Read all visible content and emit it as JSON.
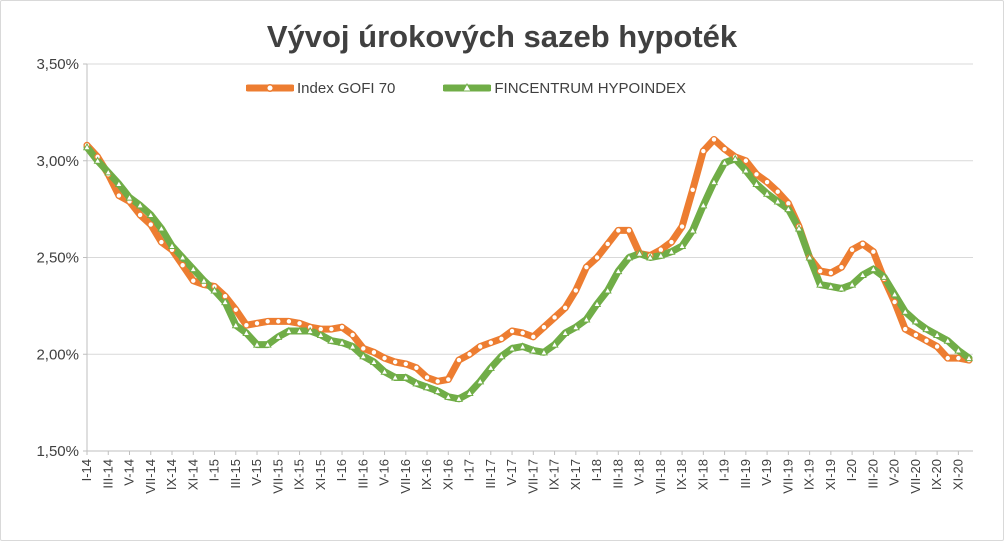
{
  "chart_data": {
    "type": "line",
    "title": "Vývoj úrokových sazeb hypoték",
    "xlabel": "",
    "ylabel": "",
    "ylim": [
      1.5,
      3.5
    ],
    "y_ticks": [
      "1,50%",
      "2,00%",
      "2,50%",
      "3,00%",
      "3,50%"
    ],
    "y_tick_values": [
      1.5,
      2.0,
      2.5,
      3.0,
      3.5
    ],
    "grid": "horizontal",
    "legend_position": "top",
    "x_tick_labels": [
      "I-14",
      "III-14",
      "V-14",
      "VII-14",
      "IX-14",
      "XI-14",
      "I-15",
      "III-15",
      "V-15",
      "VII-15",
      "IX-15",
      "XI-15",
      "I-16",
      "III-16",
      "V-16",
      "VII-16",
      "IX-16",
      "XI-16",
      "I-17",
      "III-17",
      "V-17",
      "VII-17",
      "IX-17",
      "XI-17",
      "I-18",
      "III-18",
      "V-18",
      "VII-18",
      "IX-18",
      "XI-18",
      "I-19",
      "III-19",
      "V-19",
      "VII-19",
      "IX-19",
      "XI-19",
      "I-20",
      "III-20",
      "V-20",
      "VII-20",
      "IX-20",
      "XI-20"
    ],
    "series": [
      {
        "name": "Index GOFI 70",
        "color": "#ed7d31",
        "marker": "circle",
        "values": [
          3.08,
          3.02,
          2.93,
          2.82,
          2.79,
          2.72,
          2.67,
          2.58,
          2.54,
          2.46,
          2.38,
          2.36,
          2.35,
          2.3,
          2.23,
          2.15,
          2.16,
          2.17,
          2.17,
          2.17,
          2.16,
          2.14,
          2.13,
          2.13,
          2.14,
          2.1,
          2.03,
          2.01,
          1.98,
          1.96,
          1.95,
          1.93,
          1.88,
          1.86,
          1.87,
          1.97,
          2.0,
          2.04,
          2.06,
          2.08,
          2.12,
          2.11,
          2.09,
          2.14,
          2.19,
          2.24,
          2.33,
          2.45,
          2.5,
          2.57,
          2.64,
          2.64,
          2.52,
          2.51,
          2.54,
          2.58,
          2.66,
          2.85,
          3.05,
          3.11,
          3.06,
          3.02,
          3.0,
          2.93,
          2.89,
          2.84,
          2.78,
          2.66,
          2.5,
          2.43,
          2.42,
          2.45,
          2.54,
          2.57,
          2.53,
          2.39,
          2.27,
          2.13,
          2.1,
          2.07,
          2.04,
          1.98,
          1.98,
          1.97
        ]
      },
      {
        "name": "FINCENTRUM HYPOINDEX",
        "color": "#70ad47",
        "marker": "triangle",
        "values": [
          3.07,
          3.0,
          2.94,
          2.88,
          2.81,
          2.77,
          2.72,
          2.65,
          2.56,
          2.5,
          2.44,
          2.38,
          2.33,
          2.27,
          2.15,
          2.11,
          2.05,
          2.05,
          2.09,
          2.12,
          2.12,
          2.12,
          2.1,
          2.07,
          2.06,
          2.04,
          1.99,
          1.96,
          1.91,
          1.88,
          1.88,
          1.85,
          1.83,
          1.81,
          1.78,
          1.77,
          1.8,
          1.86,
          1.93,
          1.99,
          2.03,
          2.04,
          2.02,
          2.01,
          2.05,
          2.11,
          2.14,
          2.18,
          2.26,
          2.33,
          2.43,
          2.5,
          2.52,
          2.5,
          2.51,
          2.53,
          2.56,
          2.64,
          2.77,
          2.89,
          2.99,
          3.01,
          2.95,
          2.88,
          2.83,
          2.79,
          2.75,
          2.65,
          2.5,
          2.36,
          2.35,
          2.34,
          2.36,
          2.41,
          2.44,
          2.4,
          2.31,
          2.22,
          2.17,
          2.13,
          2.1,
          2.07,
          2.02,
          1.98
        ]
      }
    ]
  }
}
